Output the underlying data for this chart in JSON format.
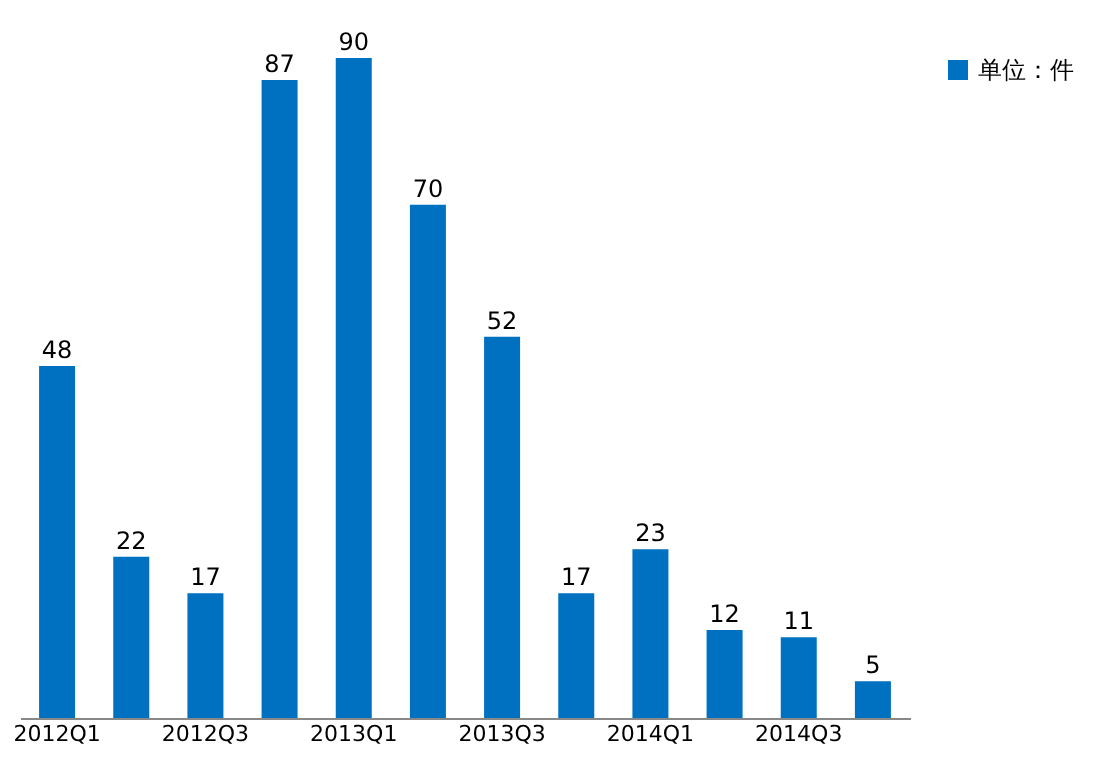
{
  "chart_data": {
    "type": "bar",
    "categories": [
      "2012Q1",
      null,
      "2012Q3",
      null,
      "2013Q1",
      null,
      "2013Q3",
      null,
      "2014Q1",
      null,
      "2014Q3",
      null
    ],
    "series": [
      {
        "name": "单位：件",
        "color": "#0070c0",
        "values": [
          48,
          22,
          17,
          87,
          90,
          70,
          52,
          17,
          23,
          12,
          11,
          5
        ]
      }
    ],
    "data_labels": true,
    "legend": "right",
    "grid": false
  }
}
